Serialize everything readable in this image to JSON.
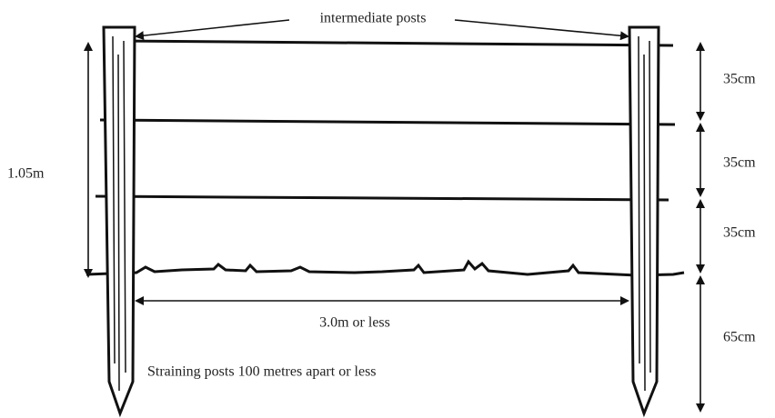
{
  "top_label": "intermediate posts",
  "height_label": "1.05m",
  "spacings": [
    "35cm",
    "35cm",
    "35cm",
    "65cm"
  ],
  "span_label": "3.0m or less",
  "bottom_label": "Straining posts 100 metres apart or less"
}
